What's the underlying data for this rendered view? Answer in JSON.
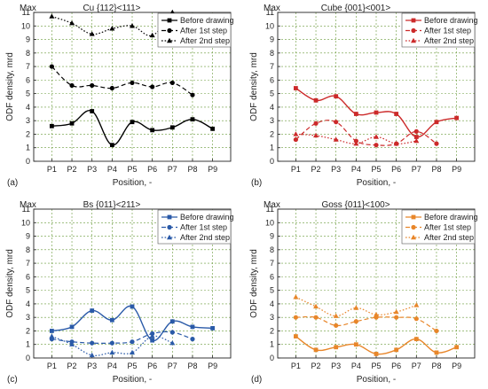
{
  "chart_data": [
    {
      "type": "line",
      "panel_label": "(a)",
      "title": "Cu {112}<111>",
      "max_label": "Max",
      "ylabel": "ODF density, mrd",
      "xlabel": "Position, -",
      "categories": [
        "P1",
        "P2",
        "P3",
        "P4",
        "P5",
        "P6",
        "P7",
        "P8",
        "P9"
      ],
      "ylim": [
        0,
        11
      ],
      "yticks": [
        0,
        1,
        2,
        3,
        4,
        5,
        6,
        7,
        8,
        9,
        10,
        11
      ],
      "grid": true,
      "legend_position": "top-right",
      "color": "#000000",
      "series": [
        {
          "name": "Before drawing",
          "values": [
            2.6,
            2.8,
            3.7,
            1.2,
            2.9,
            2.3,
            2.5,
            3.1,
            2.4
          ]
        },
        {
          "name": "After 1st step",
          "values": [
            7.0,
            5.6,
            5.6,
            5.4,
            5.8,
            5.5,
            5.8,
            4.9,
            null
          ]
        },
        {
          "name": "After 2nd step",
          "values": [
            10.7,
            10.2,
            9.4,
            9.8,
            10.0,
            9.3,
            11.0,
            null,
            null
          ]
        }
      ]
    },
    {
      "type": "line",
      "panel_label": "(b)",
      "title": "Cube {001}<001>",
      "max_label": "Max",
      "ylabel": "ODF density, mrd",
      "xlabel": "Position, -",
      "categories": [
        "P1",
        "P2",
        "P3",
        "P4",
        "P5",
        "P6",
        "P7",
        "P8",
        "P9"
      ],
      "ylim": [
        0,
        11
      ],
      "yticks": [
        0,
        1,
        2,
        3,
        4,
        5,
        6,
        7,
        8,
        9,
        10,
        11
      ],
      "grid": true,
      "legend_position": "top-right",
      "color": "#cc2a2a",
      "series": [
        {
          "name": "Before drawing",
          "values": [
            5.4,
            4.5,
            4.8,
            3.5,
            3.6,
            3.5,
            1.8,
            2.9,
            3.2
          ]
        },
        {
          "name": "After 1st step",
          "values": [
            1.6,
            2.8,
            2.9,
            1.5,
            1.2,
            1.3,
            2.2,
            1.3,
            null
          ]
        },
        {
          "name": "After 2nd step",
          "values": [
            2.0,
            1.9,
            1.6,
            1.3,
            1.8,
            1.3,
            1.5,
            null,
            null
          ]
        }
      ]
    },
    {
      "type": "line",
      "panel_label": "(c)",
      "title": "Bs {011}<211>",
      "max_label": "Max",
      "ylabel": "ODF density, mrd",
      "xlabel": "Position, -",
      "categories": [
        "P1",
        "P2",
        "P3",
        "P4",
        "P5",
        "P6",
        "P7",
        "P8",
        "P9"
      ],
      "ylim": [
        0,
        11
      ],
      "yticks": [
        0,
        1,
        2,
        3,
        4,
        5,
        6,
        7,
        8,
        9,
        10,
        11
      ],
      "grid": true,
      "legend_position": "top-right",
      "color": "#2a5aa8",
      "series": [
        {
          "name": "Before drawing",
          "values": [
            2.0,
            2.3,
            3.5,
            2.8,
            3.8,
            1.3,
            2.7,
            2.3,
            2.2
          ]
        },
        {
          "name": "After 1st step",
          "values": [
            1.4,
            1.2,
            1.1,
            1.1,
            1.2,
            1.8,
            1.9,
            1.4,
            null
          ]
        },
        {
          "name": "After 2nd step",
          "values": [
            1.6,
            1.0,
            0.2,
            0.4,
            0.4,
            1.6,
            1.1,
            null,
            null
          ]
        }
      ]
    },
    {
      "type": "line",
      "panel_label": "(d)",
      "title": "Goss {011}<100>",
      "max_label": "Max",
      "ylabel": "ODF density, mrd",
      "xlabel": "Position, -",
      "categories": [
        "P1",
        "P2",
        "P3",
        "P4",
        "P5",
        "P6",
        "P7",
        "P8",
        "P9"
      ],
      "ylim": [
        0,
        11
      ],
      "yticks": [
        0,
        1,
        2,
        3,
        4,
        5,
        6,
        7,
        8,
        9,
        10,
        11
      ],
      "grid": true,
      "legend_position": "top-right",
      "color": "#e8862a",
      "series": [
        {
          "name": "Before drawing",
          "values": [
            1.6,
            0.6,
            0.8,
            1.0,
            0.3,
            0.6,
            1.4,
            0.4,
            0.8
          ]
        },
        {
          "name": "After 1st step",
          "values": [
            3.0,
            3.0,
            2.4,
            2.7,
            3.0,
            3.0,
            2.9,
            2.0,
            null
          ]
        },
        {
          "name": "After 2nd step",
          "values": [
            4.5,
            3.8,
            3.1,
            3.7,
            3.2,
            3.4,
            3.9,
            null,
            null
          ]
        }
      ]
    }
  ]
}
